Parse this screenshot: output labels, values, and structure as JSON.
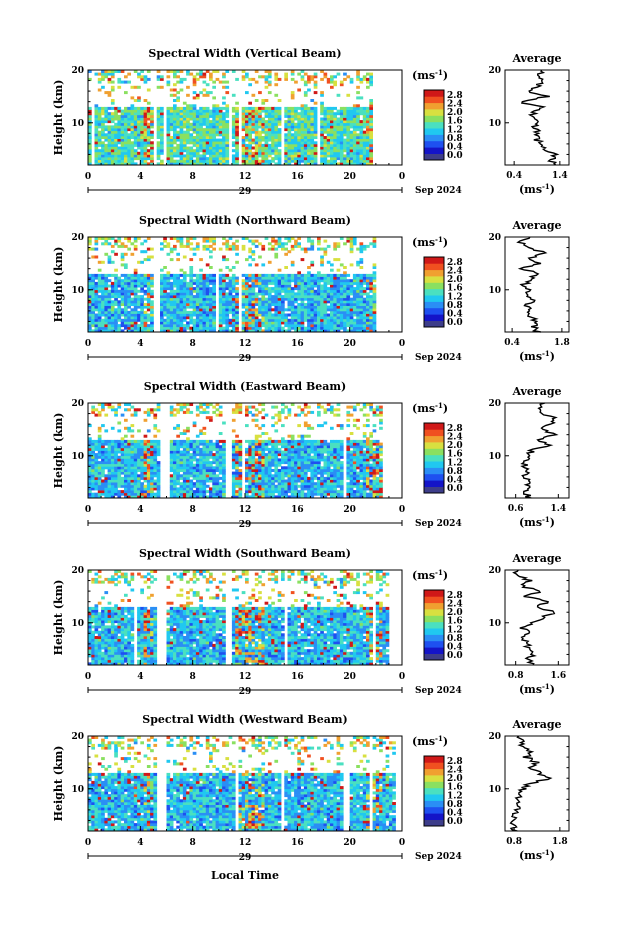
{
  "figure": {
    "xlabel": "Local Time",
    "date_label": "Sep 2024",
    "date_day": "29",
    "unit_label": "(ms",
    "unit_sup": "-1",
    "unit_close": ")",
    "avg_title": "Average",
    "ylabel": "Height (km)"
  },
  "colorbar": {
    "ticks": [
      "0.0",
      "0.4",
      "0.8",
      "1.2",
      "1.6",
      "2.0",
      "2.4",
      "2.8"
    ],
    "colors": [
      "#3d3d8a",
      "#1414c8",
      "#1e50f0",
      "#2a8ef5",
      "#20c8f0",
      "#4ae0c0",
      "#8ae060",
      "#d8e040",
      "#f0a030",
      "#f05020",
      "#d01818"
    ]
  },
  "chart_data": [
    {
      "type": "heatmap",
      "title": "Spectral Width (Vertical Beam)",
      "x_ticks": [
        "0",
        "4",
        "8",
        "12",
        "16",
        "20",
        "0"
      ],
      "xlim": [
        0,
        24
      ],
      "y_ticks": [
        "20",
        "10"
      ],
      "ylim": [
        2,
        20
      ],
      "avg_x_ticks": [
        "0.4",
        "1.4"
      ],
      "avg_xlim": [
        0.2,
        1.6
      ],
      "avg_profile": [
        {
          "h": 2,
          "v": 1.35
        },
        {
          "h": 3,
          "v": 1.2
        },
        {
          "h": 4,
          "v": 1.3
        },
        {
          "h": 5,
          "v": 1.05
        },
        {
          "h": 6,
          "v": 0.95
        },
        {
          "h": 7,
          "v": 0.9
        },
        {
          "h": 8,
          "v": 0.95
        },
        {
          "h": 9,
          "v": 0.85
        },
        {
          "h": 10,
          "v": 0.9
        },
        {
          "h": 11,
          "v": 0.8
        },
        {
          "h": 12,
          "v": 0.85
        },
        {
          "h": 13,
          "v": 1.0
        },
        {
          "h": 14,
          "v": 0.5
        },
        {
          "h": 15,
          "v": 1.1
        },
        {
          "h": 16,
          "v": 0.7
        },
        {
          "h": 17,
          "v": 0.9
        },
        {
          "h": 18,
          "v": 1.0
        },
        {
          "h": 19,
          "v": 0.95
        },
        {
          "h": 20,
          "v": 1.0
        }
      ]
    },
    {
      "type": "heatmap",
      "title": "Spectral Width (Northward Beam)",
      "x_ticks": [
        "0",
        "4",
        "8",
        "12",
        "16",
        "20",
        "0"
      ],
      "xlim": [
        0,
        24
      ],
      "y_ticks": [
        "20",
        "10"
      ],
      "ylim": [
        2,
        20
      ],
      "avg_x_ticks": [
        "0.4",
        "1.8"
      ],
      "avg_xlim": [
        0.2,
        2.0
      ],
      "avg_profile": [
        {
          "h": 2,
          "v": 1.15
        },
        {
          "h": 3,
          "v": 1.0
        },
        {
          "h": 4,
          "v": 1.1
        },
        {
          "h": 5,
          "v": 0.95
        },
        {
          "h": 6,
          "v": 0.9
        },
        {
          "h": 7,
          "v": 0.85
        },
        {
          "h": 8,
          "v": 0.95
        },
        {
          "h": 9,
          "v": 0.8
        },
        {
          "h": 10,
          "v": 0.85
        },
        {
          "h": 11,
          "v": 0.75
        },
        {
          "h": 12,
          "v": 0.9
        },
        {
          "h": 13,
          "v": 1.1
        },
        {
          "h": 14,
          "v": 0.7
        },
        {
          "h": 15,
          "v": 1.2
        },
        {
          "h": 16,
          "v": 0.9
        },
        {
          "h": 17,
          "v": 1.3
        },
        {
          "h": 18,
          "v": 0.8
        },
        {
          "h": 19,
          "v": 0.6
        },
        {
          "h": 20,
          "v": 0.9
        }
      ]
    },
    {
      "type": "heatmap",
      "title": "Spectral Width (Eastward Beam)",
      "x_ticks": [
        "0",
        "4",
        "8",
        "12",
        "16",
        "20",
        "0"
      ],
      "xlim": [
        0,
        24
      ],
      "y_ticks": [
        "20",
        "10"
      ],
      "ylim": [
        2,
        20
      ],
      "avg_x_ticks": [
        "0.6",
        "1.4"
      ],
      "avg_xlim": [
        0.4,
        1.6
      ],
      "avg_profile": [
        {
          "h": 2,
          "v": 0.85
        },
        {
          "h": 3,
          "v": 0.8
        },
        {
          "h": 4,
          "v": 0.82
        },
        {
          "h": 5,
          "v": 0.8
        },
        {
          "h": 6,
          "v": 0.78
        },
        {
          "h": 7,
          "v": 0.8
        },
        {
          "h": 8,
          "v": 0.78
        },
        {
          "h": 9,
          "v": 0.8
        },
        {
          "h": 10,
          "v": 0.85
        },
        {
          "h": 11,
          "v": 0.9
        },
        {
          "h": 12,
          "v": 1.2
        },
        {
          "h": 13,
          "v": 1.0
        },
        {
          "h": 14,
          "v": 1.3
        },
        {
          "h": 15,
          "v": 1.1
        },
        {
          "h": 16,
          "v": 1.25
        },
        {
          "h": 17,
          "v": 1.35
        },
        {
          "h": 18,
          "v": 1.1
        },
        {
          "h": 19,
          "v": 1.0
        },
        {
          "h": 20,
          "v": 1.15
        }
      ]
    },
    {
      "type": "heatmap",
      "title": "Spectral Width (Southward Beam)",
      "x_ticks": [
        "0",
        "4",
        "8",
        "12",
        "16",
        "20",
        "0"
      ],
      "xlim": [
        0,
        24
      ],
      "y_ticks": [
        "20",
        "10"
      ],
      "ylim": [
        2,
        20
      ],
      "avg_x_ticks": [
        "0.8",
        "1.6"
      ],
      "avg_xlim": [
        0.6,
        1.8
      ],
      "avg_profile": [
        {
          "h": 2,
          "v": 1.15
        },
        {
          "h": 3,
          "v": 1.05
        },
        {
          "h": 4,
          "v": 1.1
        },
        {
          "h": 5,
          "v": 1.0
        },
        {
          "h": 6,
          "v": 1.05
        },
        {
          "h": 7,
          "v": 0.95
        },
        {
          "h": 8,
          "v": 1.0
        },
        {
          "h": 9,
          "v": 0.95
        },
        {
          "h": 10,
          "v": 1.15
        },
        {
          "h": 11,
          "v": 1.3
        },
        {
          "h": 12,
          "v": 1.55
        },
        {
          "h": 13,
          "v": 1.2
        },
        {
          "h": 14,
          "v": 1.4
        },
        {
          "h": 15,
          "v": 1.0
        },
        {
          "h": 16,
          "v": 1.25
        },
        {
          "h": 17,
          "v": 0.9
        },
        {
          "h": 18,
          "v": 1.05
        },
        {
          "h": 19,
          "v": 0.8
        },
        {
          "h": 20,
          "v": 0.85
        }
      ]
    },
    {
      "type": "heatmap",
      "title": "Spectral Width (Westward Beam)",
      "x_ticks": [
        "0",
        "4",
        "8",
        "12",
        "16",
        "20",
        "0"
      ],
      "xlim": [
        0,
        24
      ],
      "y_ticks": [
        "20",
        "10"
      ],
      "ylim": [
        2,
        20
      ],
      "avg_x_ticks": [
        "0.8",
        "1.8"
      ],
      "avg_xlim": [
        0.6,
        2.0
      ],
      "avg_profile": [
        {
          "h": 2,
          "v": 0.8
        },
        {
          "h": 3,
          "v": 0.78
        },
        {
          "h": 4,
          "v": 0.82
        },
        {
          "h": 5,
          "v": 0.8
        },
        {
          "h": 6,
          "v": 0.85
        },
        {
          "h": 7,
          "v": 0.9
        },
        {
          "h": 8,
          "v": 0.85
        },
        {
          "h": 9,
          "v": 0.95
        },
        {
          "h": 10,
          "v": 1.0
        },
        {
          "h": 11,
          "v": 1.15
        },
        {
          "h": 12,
          "v": 1.6
        },
        {
          "h": 13,
          "v": 1.35
        },
        {
          "h": 14,
          "v": 1.2
        },
        {
          "h": 15,
          "v": 1.3
        },
        {
          "h": 16,
          "v": 1.05
        },
        {
          "h": 17,
          "v": 1.15
        },
        {
          "h": 18,
          "v": 0.95
        },
        {
          "h": 19,
          "v": 1.05
        },
        {
          "h": 20,
          "v": 0.9
        }
      ]
    }
  ]
}
